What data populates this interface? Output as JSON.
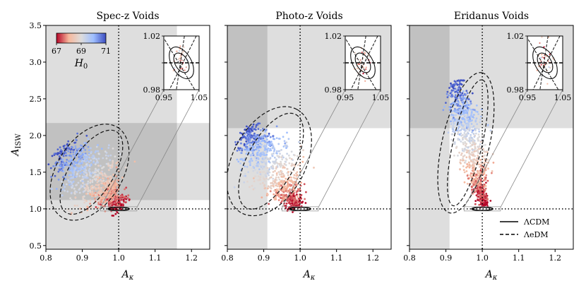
{
  "figure": {
    "ylabel": "A_ISW",
    "xlabel": "A_κ",
    "colorbar": {
      "label": "H_0",
      "ticks": [
        "67",
        "69",
        "71"
      ],
      "range": [
        67,
        71
      ],
      "colormap": "coolwarm_r",
      "colors": [
        "#b40426",
        "#f7b89c",
        "#dddcdc",
        "#9ebeff",
        "#3b4cc0"
      ]
    },
    "legend": {
      "placement": "lower-right of third panel",
      "items": [
        {
          "label": "ΛCDM",
          "style": "solid"
        },
        {
          "label": "ΛeDM",
          "style": "dashed"
        }
      ]
    }
  },
  "chart_data": [
    {
      "type": "scatter",
      "title": "Spec-z Voids",
      "xlabel": "A_κ",
      "ylabel": "A_ISW",
      "xlim": [
        0.8,
        1.25
      ],
      "ylim": [
        0.45,
        3.5
      ],
      "xticks": [
        "0.8",
        "0.9",
        "1.0",
        "1.1",
        "1.2"
      ],
      "yticks": [
        "0.5",
        "1.0",
        "1.5",
        "2.0",
        "2.5",
        "3.0",
        "3.5"
      ],
      "reference_lines": {
        "x": 1.0,
        "y": 1.0
      },
      "excluded_regions": [
        {
          "x": [
            0.8,
            1.16
          ],
          "y": [
            0.45,
            3.5
          ],
          "shade": "light"
        },
        {
          "x": [
            0.8,
            1.25
          ],
          "y": [
            1.12,
            2.17
          ],
          "shade": "light"
        }
      ],
      "scatter_band": {
        "start": [
          0.84,
          1.82
        ],
        "end": [
          1.01,
          1.02
        ],
        "width": 0.18
      },
      "contours_dashed": [
        {
          "center": [
            0.925,
            1.5
          ],
          "semi_major": 0.65,
          "semi_minor": 0.06,
          "angle_deg": -58
        },
        {
          "center": [
            0.92,
            1.5
          ],
          "semi_major": 0.72,
          "semi_minor": 0.09,
          "angle_deg": -58
        }
      ],
      "inset": {
        "xlim": [
          0.95,
          1.05
        ],
        "ylim": [
          0.98,
          1.02
        ],
        "xticks": [
          "0.95",
          "1.05"
        ],
        "yticks": [
          "1.02",
          "1.00",
          "0.98"
        ],
        "contours_solid": [
          {
            "center": [
              1.0,
              1.0
            ],
            "semi_major": 0.018,
            "semi_minor": 0.008,
            "angle_deg": 30
          },
          {
            "center": [
              1.0,
              1.0
            ],
            "semi_major": 0.028,
            "semi_minor": 0.013,
            "angle_deg": 30
          }
        ]
      }
    },
    {
      "type": "scatter",
      "title": "Photo-z Voids",
      "xlabel": "A_κ",
      "xlim": [
        0.8,
        1.25
      ],
      "ylim": [
        0.45,
        3.5
      ],
      "xticks": [
        "0.8",
        "0.9",
        "1.0",
        "1.1",
        "1.2"
      ],
      "reference_lines": {
        "x": 1.0,
        "y": 1.0
      },
      "excluded_regions": [
        {
          "x": [
            0.8,
            0.91
          ],
          "y": [
            0.45,
            3.5
          ],
          "shade": "light"
        },
        {
          "x": [
            0.8,
            1.25
          ],
          "y": [
            2.1,
            3.5
          ],
          "shade": "light"
        }
      ],
      "scatter_band": {
        "start": [
          0.855,
          2.1
        ],
        "end": [
          0.995,
          1.02
        ],
        "width": 0.17
      },
      "contours_dashed": [
        {
          "center": [
            0.92,
            1.65
          ],
          "semi_major": 0.72,
          "semi_minor": 0.065,
          "angle_deg": -62
        },
        {
          "center": [
            0.915,
            1.65
          ],
          "semi_major": 0.8,
          "semi_minor": 0.1,
          "angle_deg": -62
        }
      ],
      "inset": {
        "xlim": [
          0.95,
          1.05
        ],
        "ylim": [
          0.98,
          1.02
        ],
        "xticks": [
          "0.95",
          "1.05"
        ],
        "yticks": [
          "1.02",
          "1.00",
          "0.98"
        ],
        "contours_solid": [
          {
            "center": [
              1.0,
              1.0
            ],
            "semi_major": 0.018,
            "semi_minor": 0.008,
            "angle_deg": 30
          },
          {
            "center": [
              1.0,
              1.0
            ],
            "semi_major": 0.028,
            "semi_minor": 0.013,
            "angle_deg": 30
          }
        ]
      }
    },
    {
      "type": "scatter",
      "title": "Eridanus Voids",
      "xlabel": "A_κ",
      "xlim": [
        0.8,
        1.25
      ],
      "ylim": [
        0.45,
        3.5
      ],
      "xticks": [
        "0.8",
        "0.9",
        "1.0",
        "1.1",
        "1.2"
      ],
      "reference_lines": {
        "x": 1.0,
        "y": 1.0
      },
      "excluded_regions": [
        {
          "x": [
            0.8,
            0.91
          ],
          "y": [
            0.45,
            3.5
          ],
          "shade": "light"
        },
        {
          "x": [
            0.8,
            1.25
          ],
          "y": [
            2.1,
            3.5
          ],
          "shade": "light"
        }
      ],
      "scatter_band": {
        "start": [
          0.925,
          2.75
        ],
        "end": [
          1.005,
          1.03
        ],
        "width": 0.1
      },
      "contours_dashed": [
        {
          "center": [
            0.96,
            1.9
          ],
          "semi_major": 0.88,
          "semi_minor": 0.04,
          "angle_deg": -77
        },
        {
          "center": [
            0.955,
            1.9
          ],
          "semi_major": 0.98,
          "semi_minor": 0.065,
          "angle_deg": -77
        }
      ],
      "inset": {
        "xlim": [
          0.95,
          1.05
        ],
        "ylim": [
          0.98,
          1.02
        ],
        "xticks": [
          "0.95",
          "1.05"
        ],
        "yticks": [
          "1.02",
          "1.00",
          "0.98"
        ],
        "contours_solid": [
          {
            "center": [
              1.0,
              1.0
            ],
            "semi_major": 0.018,
            "semi_minor": 0.008,
            "angle_deg": 30
          },
          {
            "center": [
              1.0,
              1.0
            ],
            "semi_major": 0.028,
            "semi_minor": 0.013,
            "angle_deg": 30
          }
        ]
      }
    }
  ]
}
